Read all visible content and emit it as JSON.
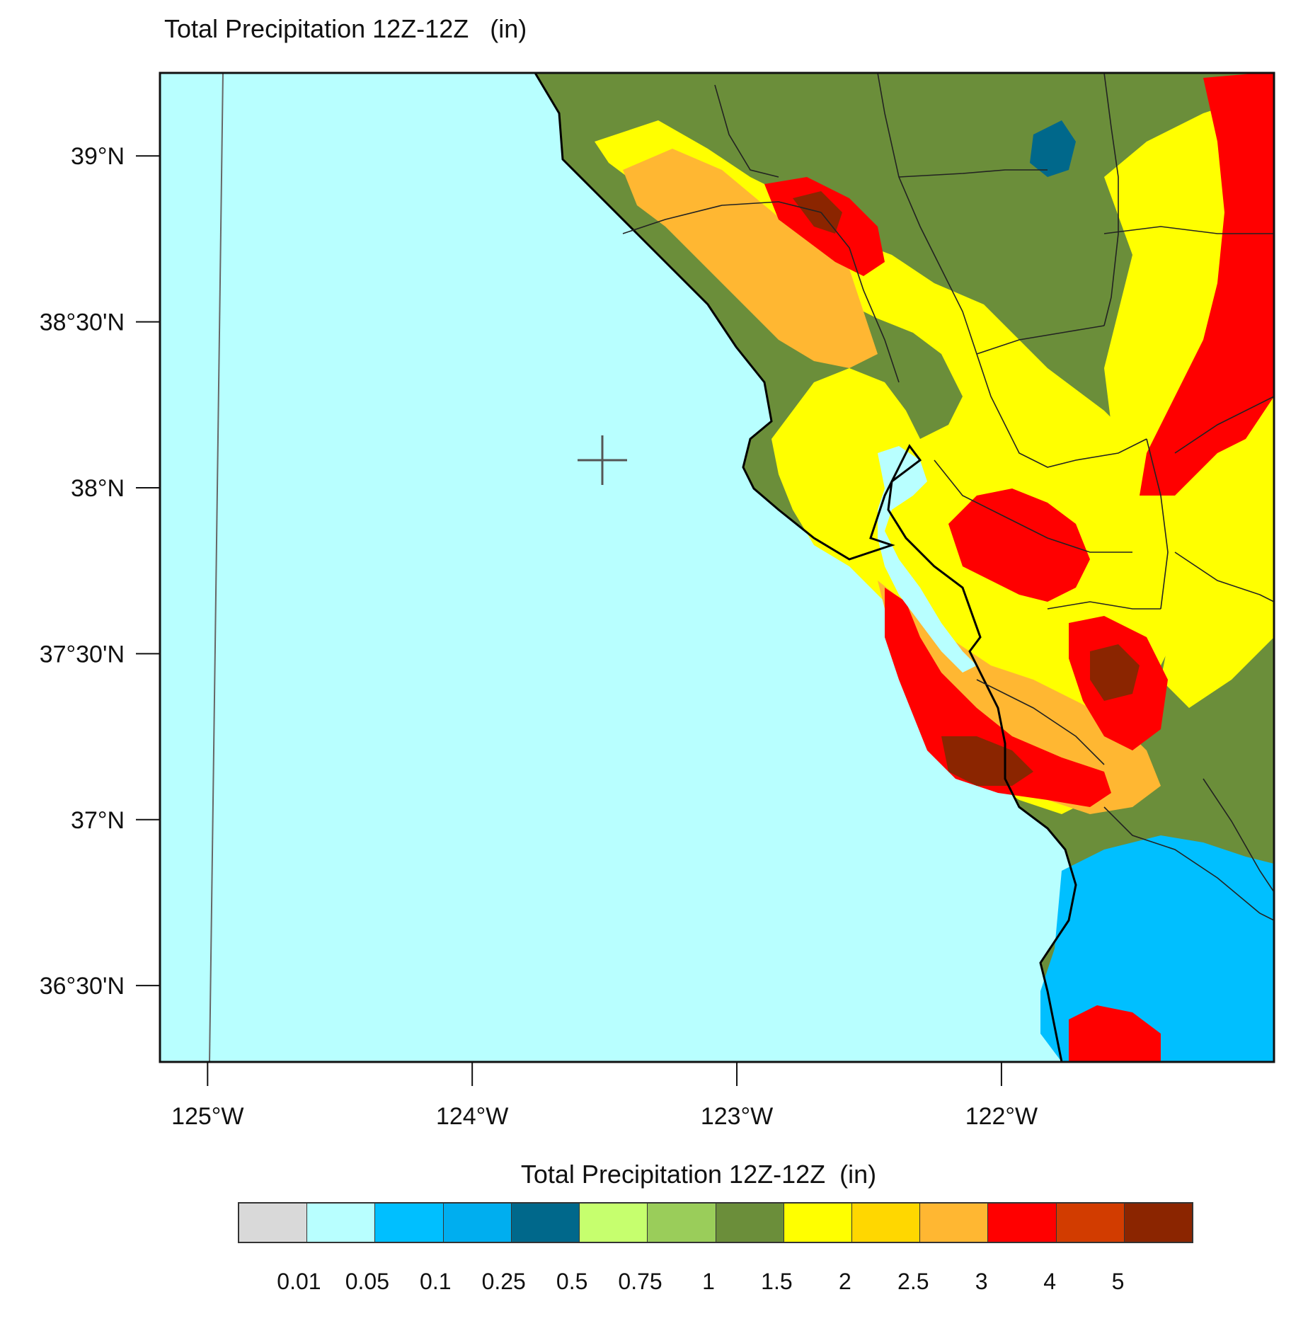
{
  "map": {
    "title": "Total Precipitation 12Z-12Z   (in)",
    "region": "California coast / San Francisco Bay Area",
    "lon_range": [
      -125.18,
      -120.97
    ],
    "lat_range": [
      36.27,
      39.25
    ],
    "lat_ticks": [
      {
        "value": 39.0,
        "label": "39°N"
      },
      {
        "value": 38.5,
        "label": "38°30'N"
      },
      {
        "value": 38.0,
        "label": "38°N"
      },
      {
        "value": 37.5,
        "label": "37°30'N"
      },
      {
        "value": 37.0,
        "label": "37°N"
      },
      {
        "value": 36.5,
        "label": "36°30'N"
      }
    ],
    "lon_ticks": [
      {
        "value": -125,
        "label": "125°W"
      },
      {
        "value": -124,
        "label": "124°W"
      },
      {
        "value": -123,
        "label": "123°W"
      },
      {
        "value": -122,
        "label": "122°W"
      }
    ],
    "marker": {
      "type": "crosshair",
      "lon": -123.55,
      "lat": 38.1
    },
    "ocean_color": "#b8ffff"
  },
  "legend": {
    "title": "Total Precipitation 12Z-12Z  (in)",
    "colors": [
      "#d9d9d9",
      "#b8ffff",
      "#00bfff",
      "#00aeef",
      "#00688b",
      "#c6ff6e",
      "#9acd5a",
      "#6b8e3a",
      "#ffff00",
      "#ffd700",
      "#ffb732",
      "#ff0000",
      "#d23c00",
      "#8b2500"
    ],
    "labels": [
      "0.01",
      "0.05",
      "0.1",
      "0.25",
      "0.5",
      "0.75",
      "1",
      "1.5",
      "2",
      "2.5",
      "3",
      "4",
      "5"
    ]
  }
}
